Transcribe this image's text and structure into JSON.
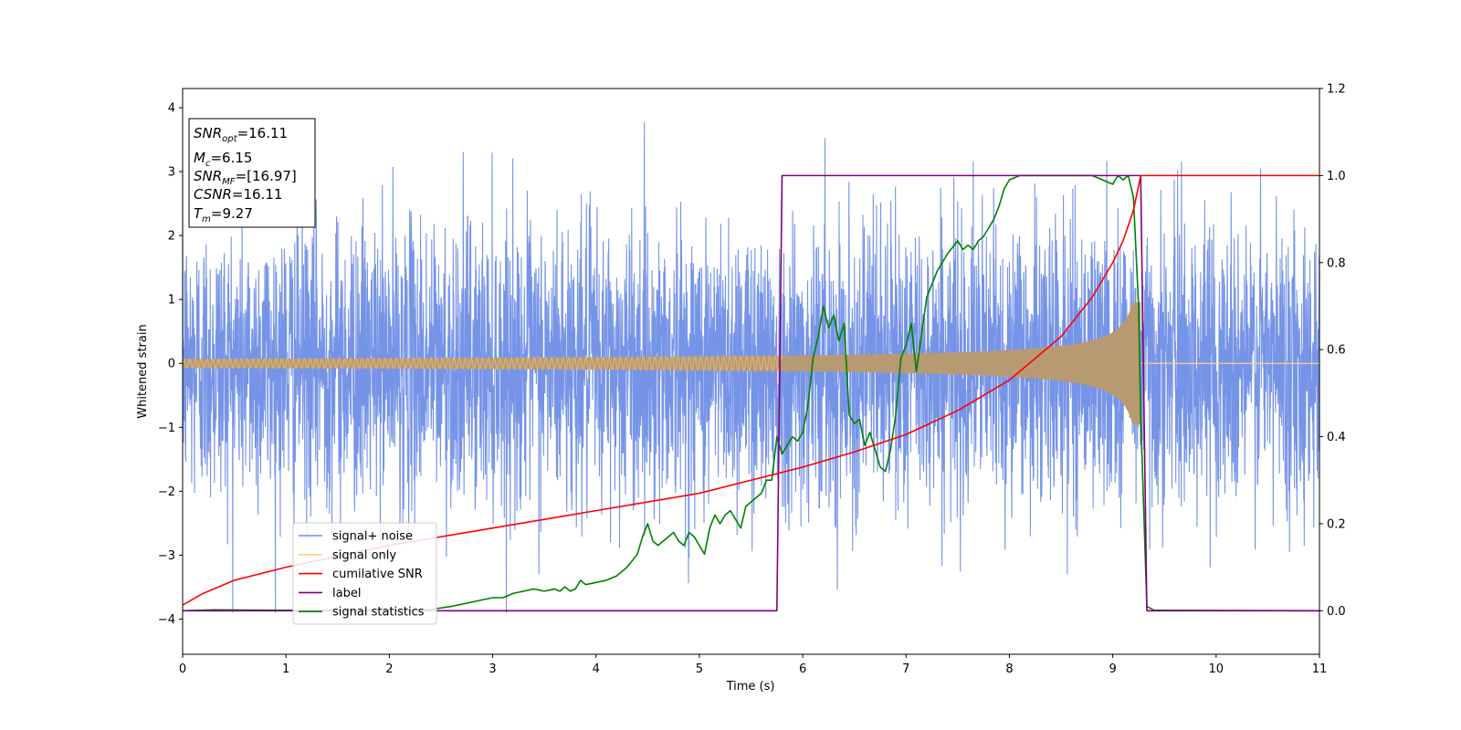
{
  "chart_data": {
    "type": "line",
    "xlabel": "Time (s)",
    "ylabel": "Whitened strain",
    "xlim": [
      0,
      11
    ],
    "ylim": [
      -4.55,
      4.3
    ],
    "y2lim": [
      -0.1,
      1.2
    ],
    "x_ticks": [
      "0",
      "1",
      "2",
      "3",
      "4",
      "5",
      "6",
      "7",
      "8",
      "9",
      "10",
      "11"
    ],
    "y_ticks": [
      "4",
      "3",
      "2",
      "1",
      "0",
      "−1",
      "−2",
      "−3",
      "−4"
    ],
    "y_tick_values": [
      4,
      3,
      2,
      1,
      0,
      -1,
      -2,
      -3,
      -4
    ],
    "y2_ticks": [
      "1.2",
      "1.0",
      "0.8",
      "0.6",
      "0.4",
      "0.2",
      "0.0"
    ],
    "y2_tick_values": [
      1.2,
      1.0,
      0.8,
      0.6,
      0.4,
      0.2,
      0.0
    ],
    "grid": false,
    "legend_position": "lower-left",
    "legend": [
      {
        "label": "signal+ noise",
        "color": "#6f8ee6"
      },
      {
        "label": "signal only",
        "color": "#ffd080"
      },
      {
        "label": "cumilative SNR",
        "color": "#ff0000"
      },
      {
        "label": "label",
        "color": "#800080"
      },
      {
        "label": "signal statistics",
        "color": "#008000"
      }
    ],
    "annotation": {
      "line1": {
        "sym": "SNR",
        "sub": "opt",
        "val": "=16.11"
      },
      "line2": {
        "sym": "M",
        "sub": "c",
        "val": "=6.15"
      },
      "line3": {
        "sym": "SNR",
        "sub": "MF",
        "val": "=[16.97]"
      },
      "line4": {
        "sym": "CSNR",
        "sub": "",
        "val": "=16.11"
      },
      "line5": {
        "sym": "T",
        "sub": "m",
        "val": "=9.27"
      }
    },
    "series": [
      {
        "name": "signal+ noise",
        "axis": "left",
        "color": "#6f8ee6",
        "noise_band": {
          "sigma": 1.1,
          "max_abs": 3.9,
          "x_start": 0,
          "x_end": 11
        }
      },
      {
        "name": "signal only",
        "axis": "left",
        "color": "#ffd080",
        "chirp": {
          "x_start": 0,
          "x_end": 11,
          "merger_time": 9.27,
          "amplitude_start": 0.07,
          "amplitude_at_0.92": 0.22,
          "amplitude_at_9.2": 1.0
        }
      },
      {
        "name": "cumilative SNR",
        "axis": "right",
        "color": "#ff0000",
        "x": [
          0,
          0.2,
          0.5,
          1,
          1.5,
          2,
          2.5,
          3,
          3.5,
          4,
          4.5,
          5,
          5.5,
          6,
          6.5,
          7,
          7.5,
          8,
          8.5,
          8.8,
          9.0,
          9.1,
          9.2,
          9.27,
          9.3,
          11
        ],
        "values": [
          0.013,
          0.04,
          0.07,
          0.1,
          0.125,
          0.15,
          0.17,
          0.19,
          0.21,
          0.23,
          0.25,
          0.27,
          0.3,
          0.33,
          0.365,
          0.405,
          0.46,
          0.53,
          0.63,
          0.72,
          0.8,
          0.85,
          0.92,
          1.0,
          1.0,
          1.0
        ]
      },
      {
        "name": "label",
        "axis": "right",
        "color": "#800080",
        "x": [
          0,
          5.75,
          5.8,
          9.27,
          9.33,
          11
        ],
        "values": [
          0,
          0,
          1,
          1,
          0,
          0
        ]
      },
      {
        "name": "signal statistics",
        "axis": "right",
        "color": "#008000",
        "x": [
          0,
          0.3,
          1,
          2,
          2.4,
          2.6,
          2.8,
          3.0,
          3.1,
          3.2,
          3.3,
          3.4,
          3.5,
          3.6,
          3.65,
          3.7,
          3.75,
          3.8,
          3.85,
          3.9,
          4.0,
          4.1,
          4.2,
          4.3,
          4.4,
          4.45,
          4.5,
          4.55,
          4.6,
          4.7,
          4.75,
          4.8,
          4.85,
          4.9,
          4.95,
          5.0,
          5.05,
          5.1,
          5.15,
          5.2,
          5.25,
          5.3,
          5.35,
          5.4,
          5.45,
          5.5,
          5.6,
          5.65,
          5.7,
          5.75,
          5.8,
          5.85,
          5.9,
          5.95,
          6.0,
          6.05,
          6.1,
          6.15,
          6.2,
          6.25,
          6.3,
          6.35,
          6.4,
          6.45,
          6.5,
          6.55,
          6.6,
          6.65,
          6.7,
          6.75,
          6.8,
          6.85,
          6.9,
          6.95,
          7.0,
          7.05,
          7.1,
          7.2,
          7.3,
          7.4,
          7.5,
          7.55,
          7.6,
          7.65,
          7.7,
          7.75,
          7.8,
          7.85,
          7.9,
          7.95,
          8.0,
          8.1,
          8.2,
          8.5,
          8.8,
          8.9,
          9.0,
          9.05,
          9.1,
          9.15,
          9.2,
          9.25,
          9.27,
          9.33,
          9.4,
          11
        ],
        "values": [
          0,
          0.002,
          0.001,
          0.001,
          0.003,
          0.01,
          0.02,
          0.03,
          0.03,
          0.04,
          0.045,
          0.05,
          0.045,
          0.05,
          0.045,
          0.055,
          0.045,
          0.05,
          0.07,
          0.06,
          0.065,
          0.07,
          0.08,
          0.1,
          0.13,
          0.17,
          0.2,
          0.16,
          0.15,
          0.17,
          0.18,
          0.16,
          0.15,
          0.18,
          0.17,
          0.15,
          0.13,
          0.19,
          0.22,
          0.2,
          0.22,
          0.23,
          0.21,
          0.19,
          0.24,
          0.25,
          0.27,
          0.3,
          0.3,
          0.4,
          0.36,
          0.38,
          0.4,
          0.39,
          0.41,
          0.47,
          0.58,
          0.63,
          0.7,
          0.65,
          0.68,
          0.62,
          0.66,
          0.45,
          0.43,
          0.44,
          0.38,
          0.41,
          0.37,
          0.33,
          0.32,
          0.37,
          0.45,
          0.58,
          0.61,
          0.66,
          0.55,
          0.72,
          0.78,
          0.82,
          0.85,
          0.83,
          0.84,
          0.83,
          0.85,
          0.86,
          0.88,
          0.9,
          0.93,
          0.97,
          0.99,
          1.0,
          1.0,
          1.0,
          1.0,
          0.99,
          0.98,
          1.0,
          0.99,
          1.0,
          0.95,
          0.7,
          0.45,
          0.01,
          0.001,
          0.0
        ]
      }
    ]
  }
}
